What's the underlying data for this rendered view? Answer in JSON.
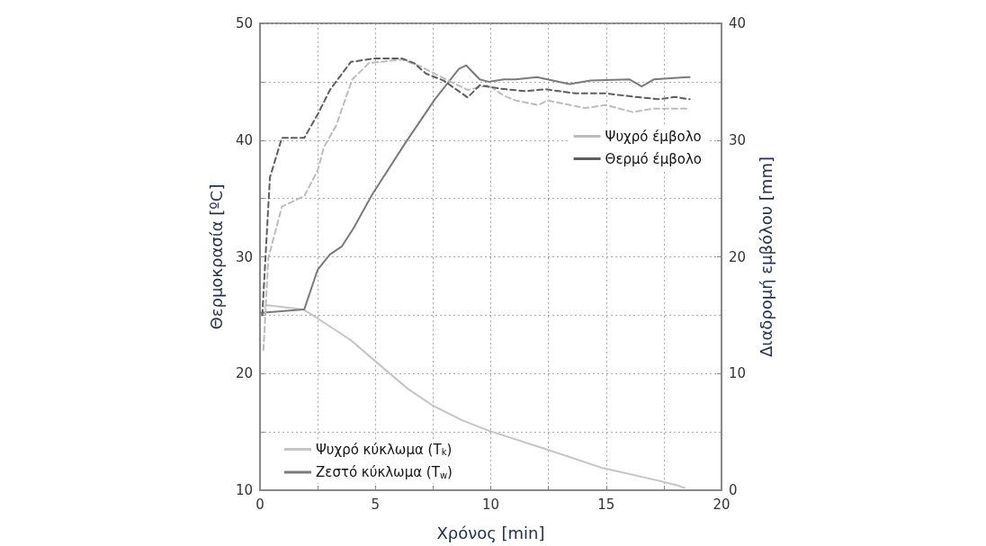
{
  "chart_data": {
    "type": "line",
    "xlabel": "Χρόνος [min]",
    "ylabel": "Θερμοκρασία [ºC]",
    "y2label": "Διαδρομή εμβόλου [mm]",
    "xlim": [
      0,
      20
    ],
    "xticks": [
      0,
      {
        "value": 2.5,
        "label": null
      },
      5,
      {
        "value": 7.5,
        "label": null
      },
      10,
      {
        "value": 12.5,
        "label": null
      },
      15,
      {
        "value": 17.5,
        "label": null
      },
      20
    ],
    "ylim": [
      10,
      50
    ],
    "yticks": [
      10,
      {
        "value": 15,
        "label": null
      },
      20,
      {
        "value": 25,
        "label": null
      },
      30,
      {
        "value": 35,
        "label": null
      },
      40,
      {
        "value": 45,
        "label": null
      },
      50
    ],
    "y2lim": [
      0,
      40
    ],
    "y2ticks": [
      0,
      10,
      20,
      30,
      40
    ],
    "grid": true,
    "legend": "bottom left",
    "marker": "none",
    "series": [
      {
        "name": "Ψυχρό κύκλωμα (T$_{k}$)",
        "color": "#c4c4c4",
        "line_style": "solid",
        "x": [
          0.2,
          0.3,
          1.86,
          2.44,
          3.94,
          4.85,
          6.4,
          7.45,
          8.75,
          9.92,
          12.65,
          14.85,
          17.32,
          18.1,
          18.4
        ],
        "values": [
          25.7,
          25.85,
          25.5,
          24.8,
          22.85,
          21.3,
          18.7,
          17.3,
          16.0,
          15.1,
          13.35,
          11.9,
          10.8,
          10.4,
          10.2
        ]
      },
      {
        "name": "Ζεστό κύκλωμα (T$_{w}$)",
        "color": "#7a7a7a",
        "line_style": "solid",
        "x": [
          0.05,
          1.92,
          2.5,
          3.03,
          3.55,
          4.07,
          4.85,
          6.28,
          7.58,
          8.62,
          8.94,
          9.52,
          9.91,
          10.57,
          11.08,
          12.0,
          13.42,
          14.33,
          16.02,
          16.54,
          17.06,
          18.62
        ],
        "values": [
          25.2,
          25.5,
          28.9,
          30.2,
          30.9,
          32.5,
          35.3,
          39.7,
          43.5,
          46.1,
          46.4,
          45.2,
          45.0,
          45.2,
          45.2,
          45.4,
          44.8,
          45.1,
          45.2,
          44.6,
          45.2,
          45.4
        ]
      },
      {
        "name": "Ψυχρό έμβολο",
        "color": "#bcbcbc",
        "line_style": "dashed",
        "axis": "y2",
        "x": [
          0.15,
          0.36,
          0.95,
          1.92,
          2.5,
          2.77,
          3.29,
          4.0,
          4.72,
          6.15,
          6.93,
          7.96,
          9.0,
          9.91,
          10.57,
          11.08,
          12.06,
          12.45,
          14.07,
          14.98,
          16.15,
          17.06,
          18.62
        ],
        "values": [
          12,
          19.9,
          24.3,
          25.2,
          27.4,
          29.4,
          31.2,
          35.2,
          36.6,
          36.9,
          36.35,
          35.3,
          34.3,
          34.7,
          33.8,
          33.4,
          33.0,
          33.4,
          32.75,
          33.0,
          32.4,
          32.7,
          32.7
        ]
      },
      {
        "name": "Θερμό έμβολο",
        "color": "#5e5e5e",
        "line_style": "dashed",
        "axis": "y2",
        "x": [
          0.1,
          0.43,
          0.95,
          1.92,
          2.5,
          3.03,
          3.94,
          4.98,
          6.15,
          6.67,
          7.19,
          7.96,
          9.0,
          9.52,
          10.44,
          11.48,
          12.39,
          13.68,
          14.98,
          16.28,
          17.32,
          17.97,
          18.62
        ],
        "values": [
          15,
          26.8,
          30.2,
          30.2,
          32.2,
          34.3,
          36.7,
          37.0,
          37.0,
          36.6,
          35.7,
          35.1,
          33.65,
          34.7,
          34.4,
          34.2,
          34.35,
          34.0,
          34.0,
          33.7,
          33.5,
          33.7,
          33.5
        ]
      }
    ]
  }
}
